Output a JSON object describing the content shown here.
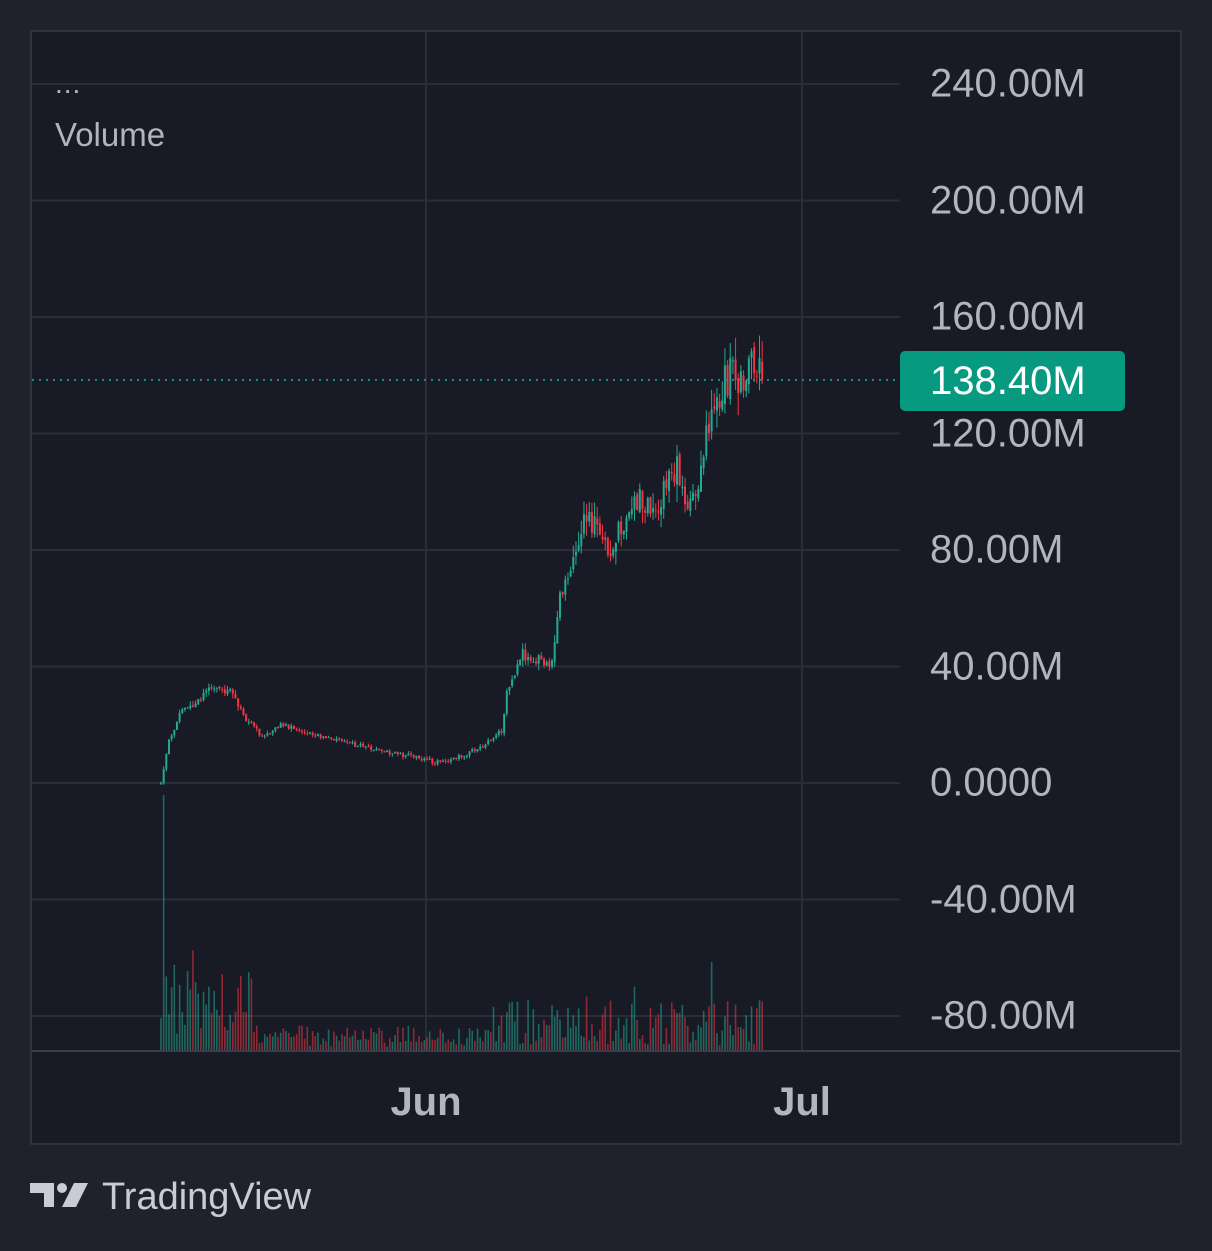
{
  "legend": {
    "more": "...",
    "title": "Volume"
  },
  "y_axis_labels": [
    "240.00M",
    "200.00M",
    "160.00M",
    "120.00M",
    "80.00M",
    "40.00M",
    "0.0000",
    "-40.00M",
    "-80.00M"
  ],
  "x_axis_labels": [
    "Jun",
    "Jul"
  ],
  "last_value_badge": "138.40M",
  "branding": {
    "logo": "tradingview-logo-icon",
    "text": "TradingView"
  },
  "colors": {
    "background": "#181a25",
    "grid": "#2a2d38",
    "up": "#22ab94",
    "down": "#f23645",
    "badge": "#089981",
    "text": "#b2b5be"
  },
  "chart_data": {
    "type": "candlestick",
    "title": "",
    "series_name": "Volume",
    "y_range": [
      -92000000,
      252000000
    ],
    "y_ticks": [
      240000000,
      200000000,
      160000000,
      120000000,
      80000000,
      40000000,
      0,
      -40000000,
      -80000000
    ],
    "x_ticks": [
      "Jun",
      "Jul"
    ],
    "last_value": 138400000,
    "grid": true,
    "close_anchors": [
      [
        0,
        0
      ],
      [
        3,
        15
      ],
      [
        8,
        25
      ],
      [
        14,
        28
      ],
      [
        20,
        33
      ],
      [
        26,
        32
      ],
      [
        32,
        22
      ],
      [
        38,
        16
      ],
      [
        45,
        20
      ],
      [
        52,
        18
      ],
      [
        60,
        16
      ],
      [
        70,
        14
      ],
      [
        82,
        11
      ],
      [
        95,
        9
      ],
      [
        105,
        7
      ],
      [
        112,
        9
      ],
      [
        122,
        13
      ],
      [
        128,
        18
      ],
      [
        130,
        31
      ],
      [
        136,
        44
      ],
      [
        142,
        43
      ],
      [
        147,
        41
      ],
      [
        150,
        65
      ],
      [
        156,
        80
      ],
      [
        160,
        94
      ],
      [
        165,
        83
      ],
      [
        170,
        81
      ],
      [
        176,
        96
      ],
      [
        181,
        98
      ],
      [
        186,
        93
      ],
      [
        190,
        104
      ],
      [
        194,
        110
      ],
      [
        198,
        90
      ],
      [
        202,
        103
      ],
      [
        206,
        123
      ],
      [
        210,
        135
      ],
      [
        214,
        140
      ],
      [
        218,
        138
      ],
      [
        222,
        142
      ],
      [
        226,
        138.4
      ]
    ],
    "candle_count": 227,
    "volume_range_mln": [
      0,
      80
    ]
  }
}
